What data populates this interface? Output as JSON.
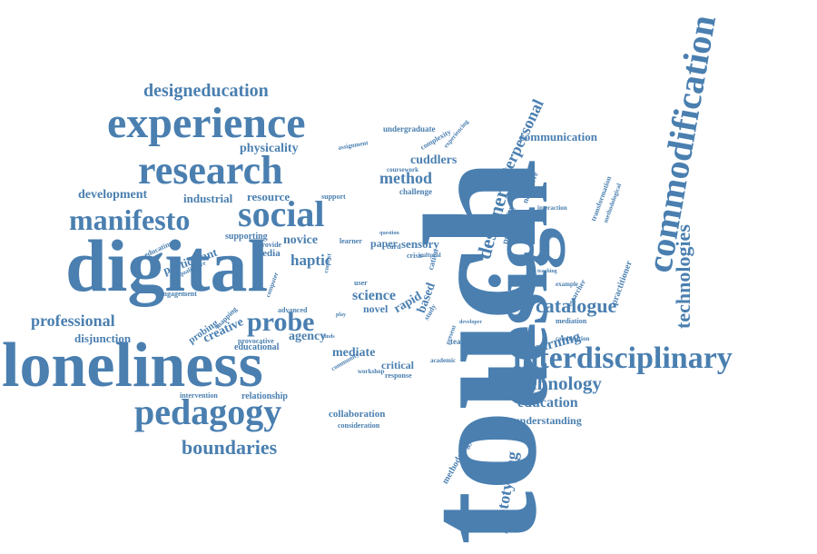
{
  "accent_color": "#4a7fb0",
  "words": [
    "touch",
    "design",
    "digital",
    "loneliness",
    "experience",
    "research",
    "social",
    "manifesto",
    "commodification",
    "interdisciplinary",
    "pedagogy",
    "probe",
    "technologies",
    "catalogue",
    "designeducation",
    "boundaries",
    "technology",
    "designer",
    "interpersonal",
    "prototyping",
    "professional",
    "method",
    "science",
    "education",
    "communication",
    "development",
    "industrial",
    "resource",
    "physicality",
    "cuddlers",
    "paper",
    "sensory",
    "haptic",
    "novice",
    "mediate",
    "creative",
    "disjunction",
    "learning",
    "understanding",
    "agency",
    "rapid",
    "based",
    "critical",
    "collaboration",
    "consideration",
    "relationship",
    "intervention",
    "educational",
    "probing",
    "mapping",
    "provocative",
    "engagement",
    "participant",
    "educating",
    "supporting",
    "provide",
    "media",
    "advanced",
    "narrative",
    "possibility",
    "complexity",
    "experiencing",
    "undergraduate",
    "assignment",
    "coursework",
    "challenge",
    "support",
    "methodology",
    "practitioner",
    "researcher",
    "transformation",
    "methodological",
    "interaction",
    "mediation",
    "combination",
    "academic",
    "response",
    "workshop",
    "community",
    "teacher",
    "present",
    "developer",
    "study",
    "card",
    "crisis",
    "cultural",
    "concern",
    "question",
    "learner",
    "user",
    "novel",
    "context",
    "cation",
    "qualitative",
    "computer",
    "teaching",
    "example",
    "finds",
    "play"
  ]
}
